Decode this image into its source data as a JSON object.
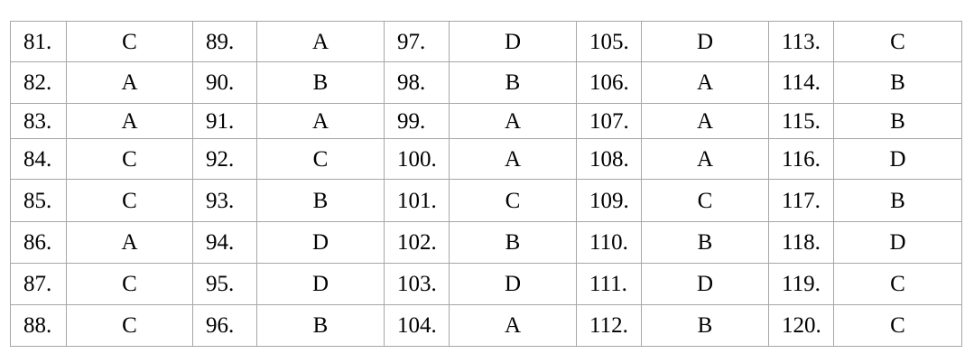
{
  "answer_key": {
    "rows": [
      [
        [
          "81.",
          "C"
        ],
        [
          "89.",
          "A"
        ],
        [
          "97.",
          "D"
        ],
        [
          "105.",
          "D"
        ],
        [
          "113.",
          "C"
        ]
      ],
      [
        [
          "82.",
          "A"
        ],
        [
          "90.",
          "B"
        ],
        [
          "98.",
          "B"
        ],
        [
          "106.",
          "A"
        ],
        [
          "114.",
          "B"
        ]
      ],
      [
        [
          "83.",
          "A"
        ],
        [
          "91.",
          "A"
        ],
        [
          "99.",
          "A"
        ],
        [
          "107.",
          "A"
        ],
        [
          "115.",
          "B"
        ]
      ],
      [
        [
          "84.",
          "C"
        ],
        [
          "92.",
          "C"
        ],
        [
          "100.",
          "A"
        ],
        [
          "108.",
          "A"
        ],
        [
          "116.",
          "D"
        ]
      ],
      [
        [
          "85.",
          "C"
        ],
        [
          "93.",
          "B"
        ],
        [
          "101.",
          "C"
        ],
        [
          "109.",
          "C"
        ],
        [
          "117.",
          "B"
        ]
      ],
      [
        [
          "86.",
          "A"
        ],
        [
          "94.",
          "D"
        ],
        [
          "102.",
          "B"
        ],
        [
          "110.",
          "B"
        ],
        [
          "118.",
          "D"
        ]
      ],
      [
        [
          "87.",
          "C"
        ],
        [
          "95.",
          "D"
        ],
        [
          "103.",
          "D"
        ],
        [
          "111.",
          "D"
        ],
        [
          "119.",
          "C"
        ]
      ],
      [
        [
          "88.",
          "C"
        ],
        [
          "96.",
          "B"
        ],
        [
          "104.",
          "A"
        ],
        [
          "112.",
          "B"
        ],
        [
          "120.",
          "C"
        ]
      ]
    ]
  }
}
